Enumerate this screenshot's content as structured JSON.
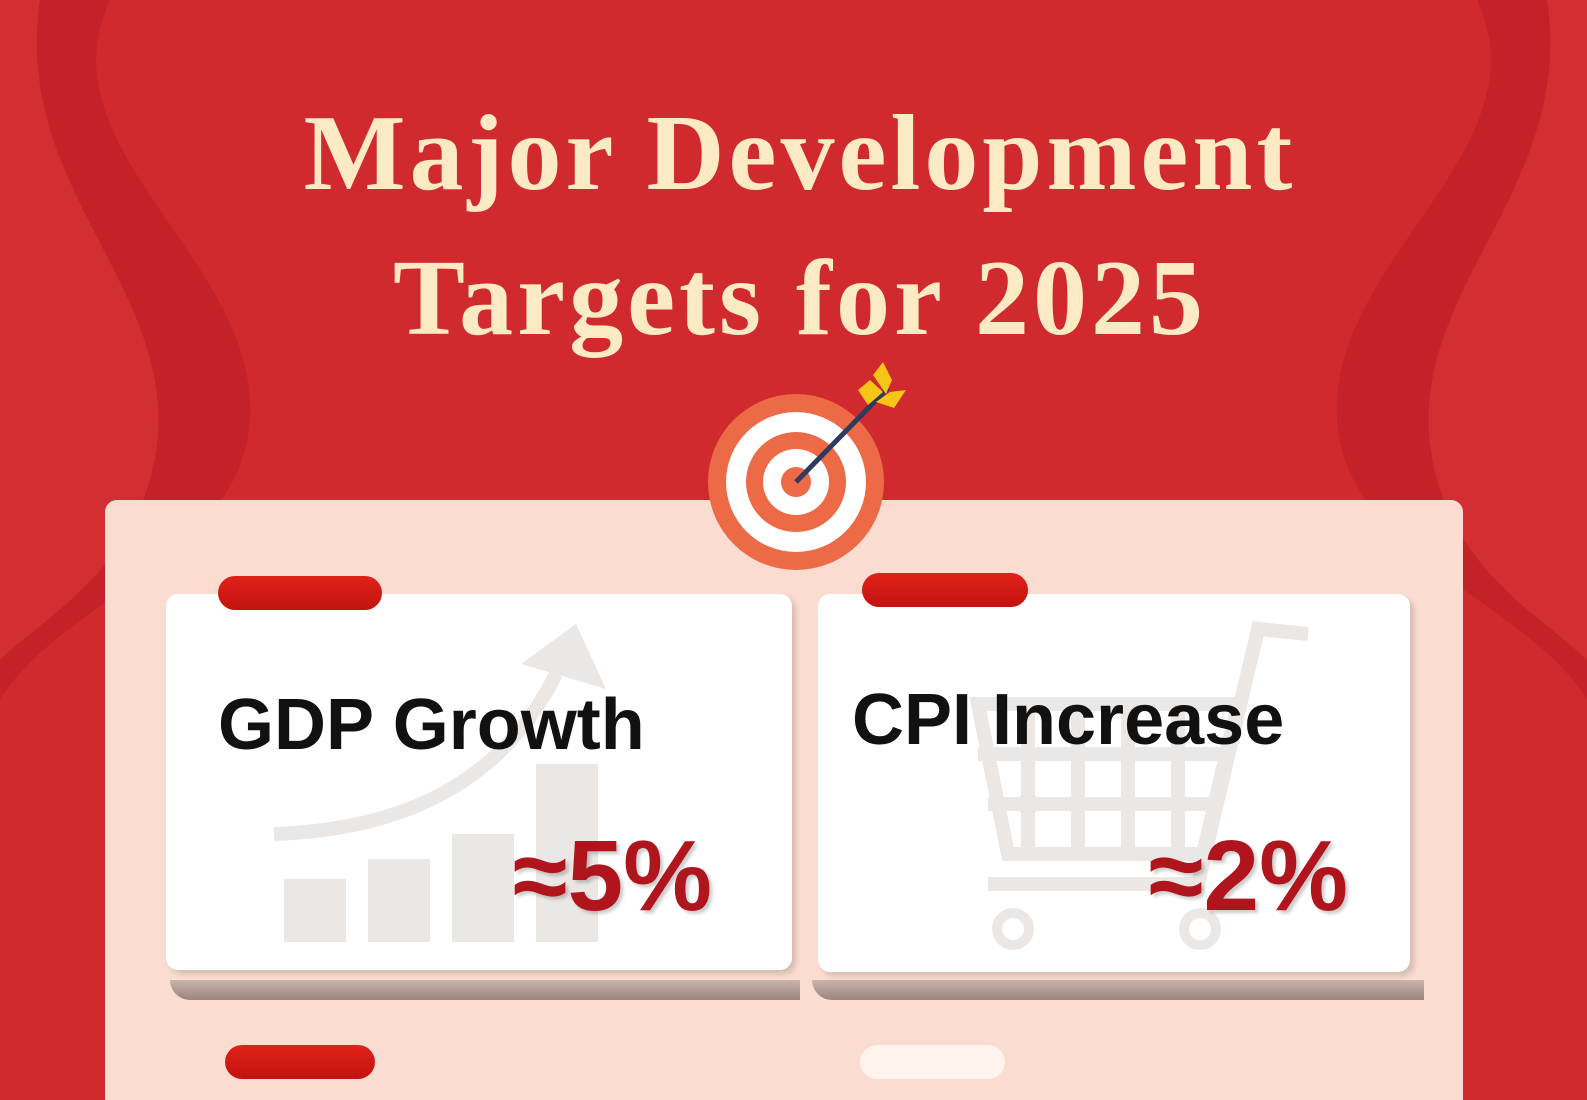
{
  "title": {
    "line1": "Major Development",
    "line2": "Targets for 2025"
  },
  "colors": {
    "background": "#d12a2e",
    "panel": "#fbdcd0",
    "title": "#fbeac4",
    "value": "#b0141c",
    "tab": "#d41a14"
  },
  "cards": [
    {
      "label": "GDP Growth",
      "value": "≈5%",
      "icon": "rising-bar-chart-icon"
    },
    {
      "label": "CPI Increase",
      "value": "≈2%",
      "icon": "shopping-cart-icon"
    }
  ],
  "header_icon": "target-arrow-icon"
}
